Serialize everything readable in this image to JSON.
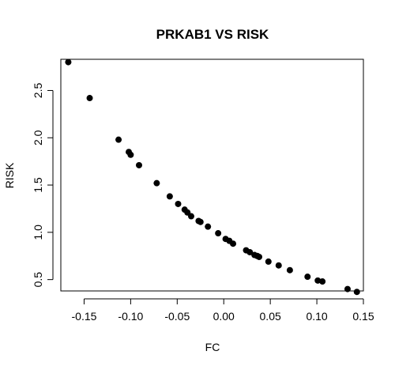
{
  "chart_data": {
    "type": "scatter",
    "title": "PRKAB1 VS RISK",
    "xlabel": "FC",
    "ylabel": "RISK",
    "xlim": [
      -0.175,
      0.15
    ],
    "ylim": [
      0.38,
      2.83
    ],
    "xticks": [
      -0.15,
      -0.1,
      -0.05,
      0.0,
      0.05,
      0.1,
      0.15
    ],
    "xtick_labels": [
      "-0.15",
      "-0.10",
      "-0.05",
      "0.00",
      "0.05",
      "0.10",
      "0.15"
    ],
    "yticks": [
      0.5,
      1.0,
      1.5,
      2.0,
      2.5
    ],
    "ytick_labels": [
      "0.5",
      "1.0",
      "1.5",
      "2.0",
      "2.5"
    ],
    "grid": false,
    "series": [
      {
        "color": "#000000",
        "points": [
          {
            "x": -0.167,
            "y": 2.8
          },
          {
            "x": -0.144,
            "y": 2.42
          },
          {
            "x": -0.113,
            "y": 1.98
          },
          {
            "x": -0.102,
            "y": 1.85
          },
          {
            "x": -0.1,
            "y": 1.82
          },
          {
            "x": -0.091,
            "y": 1.71
          },
          {
            "x": -0.072,
            "y": 1.52
          },
          {
            "x": -0.058,
            "y": 1.38
          },
          {
            "x": -0.049,
            "y": 1.3
          },
          {
            "x": -0.042,
            "y": 1.24
          },
          {
            "x": -0.039,
            "y": 1.21
          },
          {
            "x": -0.035,
            "y": 1.17
          },
          {
            "x": -0.027,
            "y": 1.12
          },
          {
            "x": -0.025,
            "y": 1.11
          },
          {
            "x": -0.017,
            "y": 1.06
          },
          {
            "x": -0.006,
            "y": 0.99
          },
          {
            "x": 0.002,
            "y": 0.93
          },
          {
            "x": 0.006,
            "y": 0.91
          },
          {
            "x": 0.01,
            "y": 0.88
          },
          {
            "x": 0.024,
            "y": 0.81
          },
          {
            "x": 0.028,
            "y": 0.79
          },
          {
            "x": 0.033,
            "y": 0.76
          },
          {
            "x": 0.036,
            "y": 0.75
          },
          {
            "x": 0.038,
            "y": 0.74
          },
          {
            "x": 0.048,
            "y": 0.69
          },
          {
            "x": 0.059,
            "y": 0.65
          },
          {
            "x": 0.071,
            "y": 0.6
          },
          {
            "x": 0.09,
            "y": 0.53
          },
          {
            "x": 0.101,
            "y": 0.49
          },
          {
            "x": 0.106,
            "y": 0.48
          },
          {
            "x": 0.133,
            "y": 0.4
          },
          {
            "x": 0.143,
            "y": 0.37
          }
        ]
      }
    ]
  }
}
